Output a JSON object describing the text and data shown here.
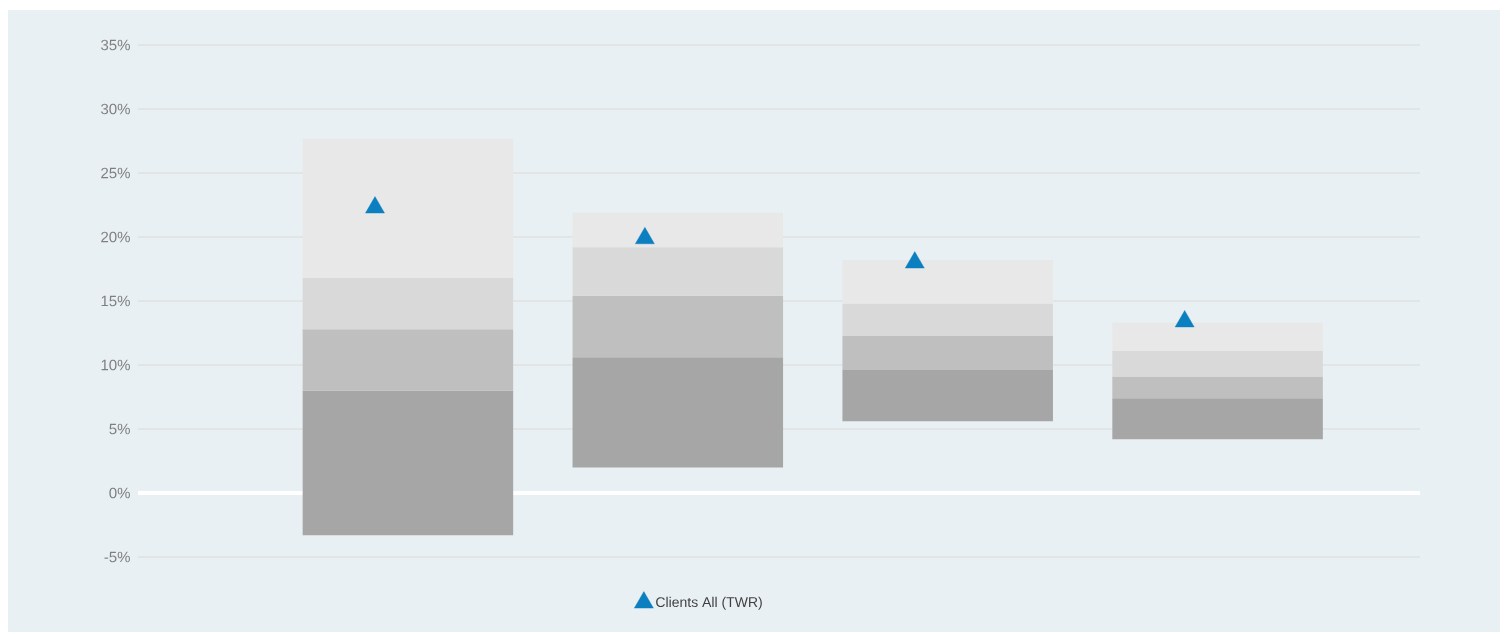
{
  "chart_data": {
    "type": "bar",
    "stacked": true,
    "categories": [
      null,
      null,
      null,
      null
    ],
    "series": [
      {
        "color": "#a6a6a6",
        "base": [
          -3.3,
          2.0,
          5.6,
          4.2
        ],
        "values": [
          11.3,
          8.6,
          4.0,
          3.2
        ]
      },
      {
        "color": "#bfbfbf",
        "values": [
          4.8,
          4.8,
          2.7,
          1.7
        ]
      },
      {
        "color": "#d9d9d9",
        "values": [
          4.0,
          3.8,
          2.5,
          2.0
        ]
      },
      {
        "color": "#e8e8e8",
        "values": [
          10.9,
          2.7,
          3.4,
          2.2
        ]
      },
      {
        "type": "scatter",
        "name": "Clients All (TWR)",
        "color": "#0b7fbf",
        "marker": "triangle",
        "values": [
          22.3,
          19.9,
          18.0,
          13.4
        ]
      }
    ],
    "ylim": [
      -5,
      35
    ],
    "yticks": [
      {
        "value": -5,
        "label": "-5%"
      },
      {
        "value": 0,
        "label": "0%"
      },
      {
        "value": 5,
        "label": "5%"
      },
      {
        "value": 10,
        "label": "10%"
      },
      {
        "value": 15,
        "label": "15%"
      },
      {
        "value": 20,
        "label": "20%"
      },
      {
        "value": 25,
        "label": "25%"
      },
      {
        "value": 30,
        "label": "30%"
      },
      {
        "value": 35,
        "label": "35%"
      }
    ],
    "grid": "y",
    "legend": "bottom"
  }
}
